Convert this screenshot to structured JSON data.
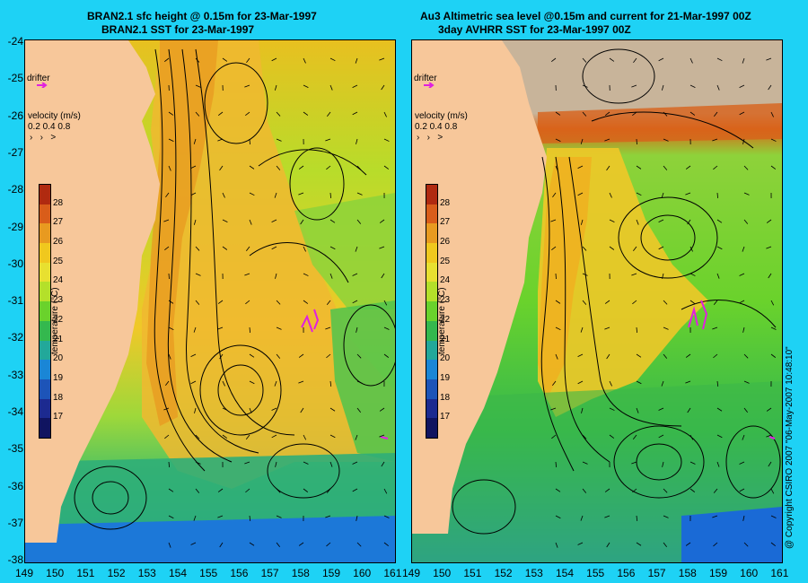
{
  "left_panel": {
    "title_line1": "BRAN2.1 sfc height @ 0.15m for 23-Mar-1997",
    "title_line2": "BRAN2.1 SST for 23-Mar-1997"
  },
  "right_panel": {
    "title_line1": "Au3 Altimetric sea level  @0.15m and current for 21-Mar-1997 00Z",
    "title_line2": "3day AVHRR SST for 23-Mar-1997 00Z"
  },
  "legend": {
    "drifter_label": "drifter",
    "velocity_label": "velocity (m/s)",
    "velocity_scale": "0.2 0.4 0.8",
    "colorbar_title": "temperature (°C)",
    "colorbar_ticks": [
      "28",
      "27",
      "26",
      "25",
      "24",
      "23",
      "22",
      "21",
      "20",
      "19",
      "18",
      "17"
    ],
    "colorbar_colors": [
      "#b02a10",
      "#d95d1a",
      "#e89a20",
      "#f0c81e",
      "#e8e030",
      "#b4e02a",
      "#6ad22c",
      "#34b84e",
      "#22a89a",
      "#1a86d6",
      "#1d54b8",
      "#1c2a90",
      "#101460"
    ]
  },
  "axes": {
    "y_ticks": [
      "-24",
      "-25",
      "-26",
      "-27",
      "-28",
      "-29",
      "-30",
      "-31",
      "-32",
      "-33",
      "-34",
      "-35",
      "-36",
      "-37",
      "-38"
    ],
    "x_ticks_left": [
      "149",
      "150",
      "151",
      "152",
      "153",
      "154",
      "155",
      "156",
      "157",
      "158",
      "159",
      "160",
      "161"
    ],
    "x_ticks_right": [
      "149",
      "150",
      "151",
      "152",
      "153",
      "154",
      "155",
      "156",
      "157",
      "158",
      "159",
      "160",
      "161"
    ]
  },
  "copyright": "@ Copyright CSIRO 2007 \"06-May-2007 10:48:10\"",
  "colors": {
    "background": "#1ed2f5",
    "land": "#f7c79a",
    "drifter": "#e020e0",
    "missing": "#c8b49a"
  }
}
